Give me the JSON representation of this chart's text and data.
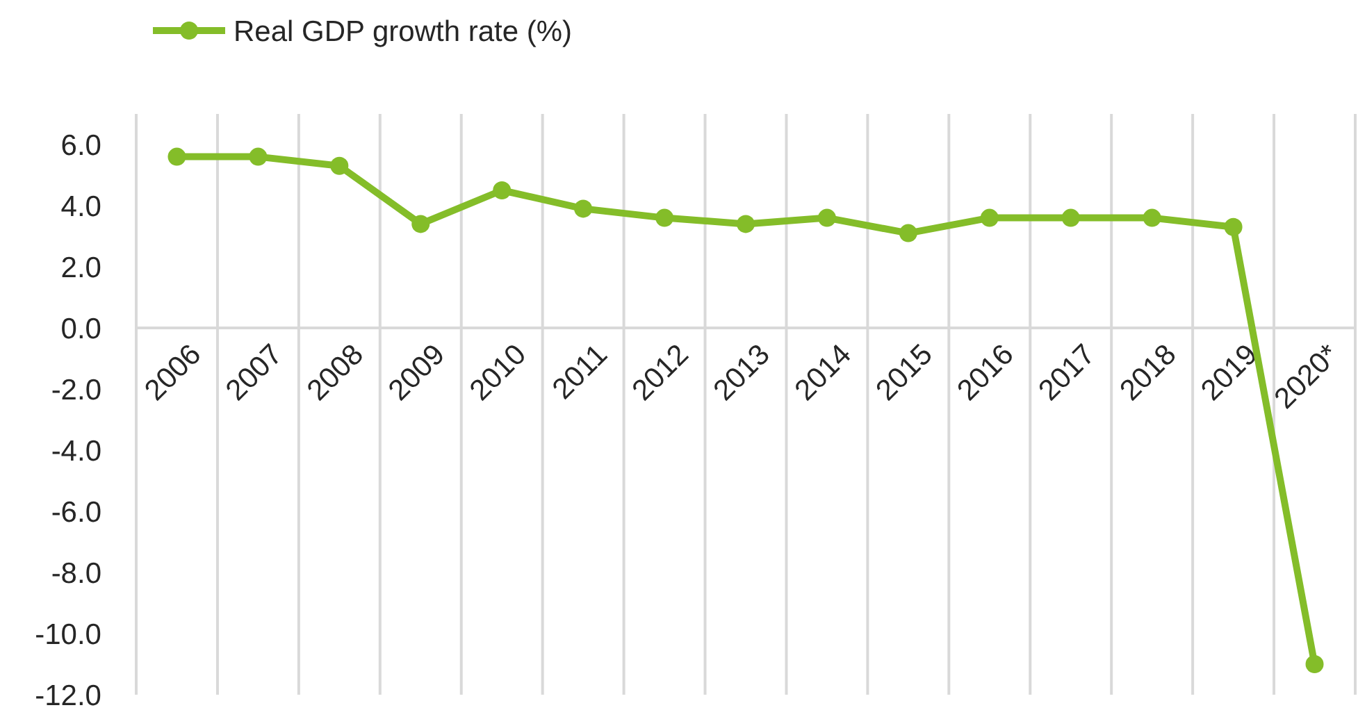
{
  "chart_data": {
    "type": "line",
    "categories": [
      "2006",
      "2007",
      "2008",
      "2009",
      "2010",
      "2011",
      "2012",
      "2013",
      "2014",
      "2015",
      "2016",
      "2017",
      "2018",
      "2019",
      "2020*"
    ],
    "series": [
      {
        "name": "Real GDP growth rate (%)",
        "color": "#84bd29",
        "values": [
          5.6,
          5.6,
          5.3,
          3.4,
          4.5,
          3.9,
          3.6,
          3.4,
          3.6,
          3.1,
          3.6,
          3.6,
          3.6,
          3.3,
          -11.0
        ]
      }
    ],
    "ylim": [
      -12,
      7
    ],
    "yticks": [
      {
        "value": 6,
        "label": "6.0"
      },
      {
        "value": 4,
        "label": "4.0"
      },
      {
        "value": 2,
        "label": "2.0"
      },
      {
        "value": 0,
        "label": "0.0"
      },
      {
        "value": -2,
        "label": "-2.0"
      },
      {
        "value": -4,
        "label": "-4.0"
      },
      {
        "value": -6,
        "label": "-6.0"
      },
      {
        "value": -8,
        "label": "-8.0"
      },
      {
        "value": -10,
        "label": "-10.0"
      },
      {
        "value": -12,
        "label": "-12.0"
      }
    ],
    "grid": "x",
    "legend": "top left",
    "marker": "circle",
    "line_style": "solid"
  }
}
